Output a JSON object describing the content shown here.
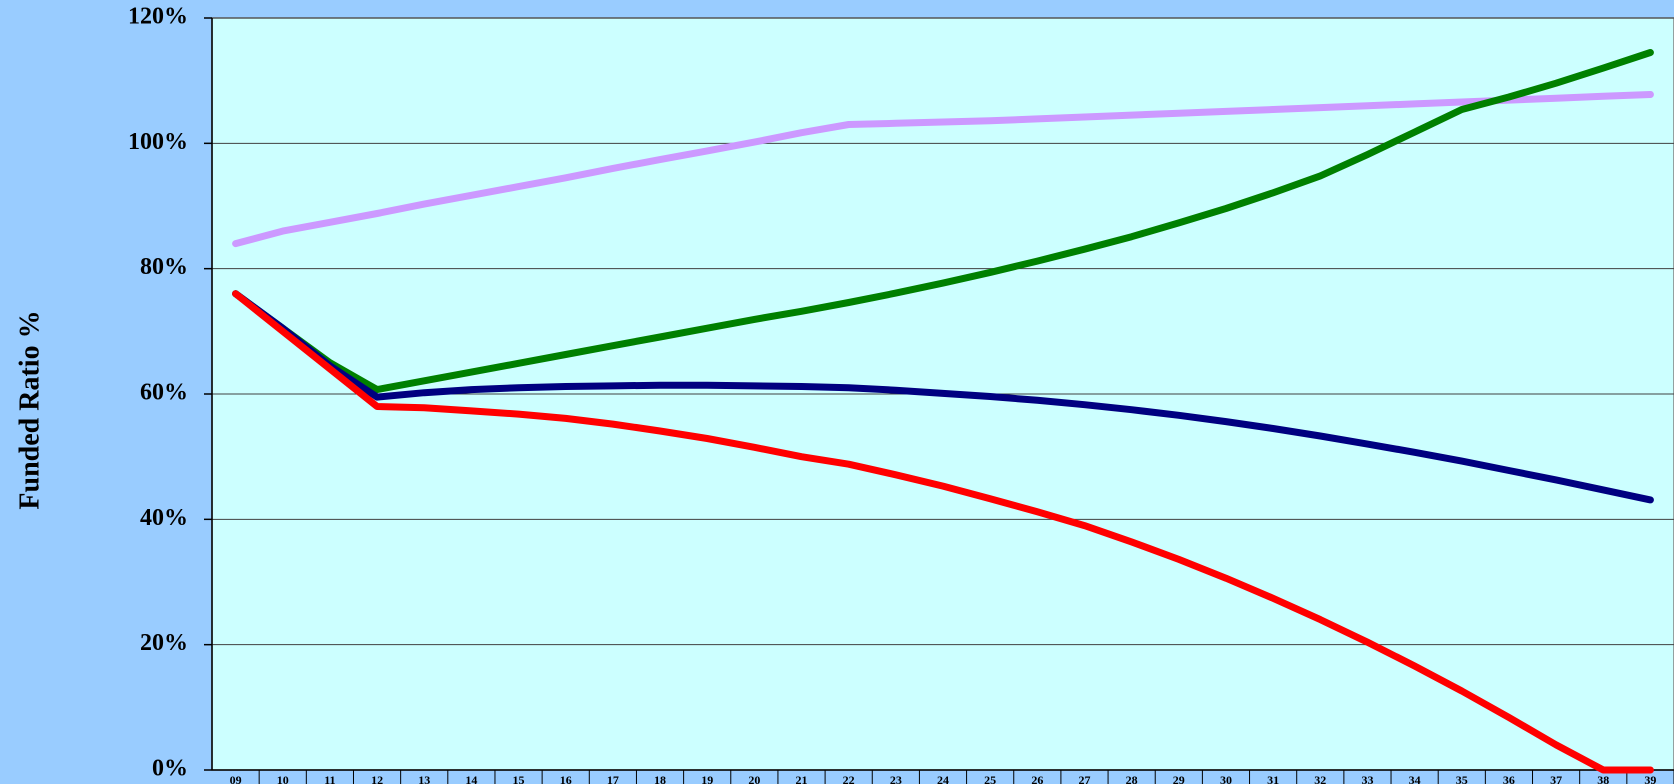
{
  "chart_data": {
    "type": "line",
    "y_label": "Funded Ratio %",
    "categories": [
      "09",
      "10",
      "11",
      "12",
      "13",
      "14",
      "15",
      "16",
      "17",
      "18",
      "19",
      "20",
      "21",
      "22",
      "23",
      "24",
      "25",
      "26",
      "27",
      "28",
      "29",
      "30",
      "31",
      "32",
      "33",
      "34",
      "35",
      "36",
      "37",
      "38",
      "39"
    ],
    "series": [
      {
        "color": "#cc99ff",
        "values": [
          84,
          86,
          87.4,
          88.8,
          90.3,
          91.7,
          93.1,
          94.5,
          96,
          97.4,
          98.8,
          100.2,
          101.7,
          103,
          103.2,
          103.4,
          103.6,
          103.9,
          104.2,
          104.5,
          104.8,
          105.1,
          105.4,
          105.7,
          106,
          106.3,
          106.6,
          106.9,
          107.2,
          107.5,
          107.8
        ]
      },
      {
        "color": "#008000",
        "values": [
          76,
          70.5,
          65,
          60.7,
          62.1,
          63.5,
          64.9,
          66.3,
          67.7,
          69.1,
          70.5,
          71.9,
          73.2,
          74.6,
          76.1,
          77.7,
          79.4,
          81.2,
          83.1,
          85.1,
          87.3,
          89.6,
          92.1,
          94.8,
          98.2,
          101.8,
          105.4,
          107.4,
          109.6,
          112,
          114.5
        ]
      },
      {
        "color": "#000080",
        "values": [
          76,
          70.5,
          64.5,
          59.5,
          60.2,
          60.7,
          61,
          61.2,
          61.3,
          61.4,
          61.4,
          61.3,
          61.2,
          61,
          60.6,
          60.1,
          59.6,
          59,
          58.3,
          57.5,
          56.6,
          55.6,
          54.5,
          53.3,
          52,
          50.7,
          49.3,
          47.8,
          46.3,
          44.7,
          43.1
        ]
      },
      {
        "color": "#ff0000",
        "values": [
          76,
          70,
          64,
          58,
          57.8,
          57.3,
          56.8,
          56.1,
          55.2,
          54.1,
          52.9,
          51.5,
          50,
          48.8,
          47.1,
          45.3,
          43.3,
          41.2,
          39,
          36.4,
          33.6,
          30.6,
          27.4,
          24,
          20.4,
          16.6,
          12.6,
          8.4,
          4,
          0,
          0
        ]
      }
    ],
    "ylim": [
      0,
      120
    ],
    "yticks": [
      {
        "value": 0,
        "label": "0%"
      },
      {
        "value": 20,
        "label": "20%"
      },
      {
        "value": 40,
        "label": "40%"
      },
      {
        "value": 60,
        "label": "60%"
      },
      {
        "value": 80,
        "label": "80%"
      },
      {
        "value": 100,
        "label": "100%"
      },
      {
        "value": 120,
        "label": "120%"
      }
    ],
    "grid": true,
    "background": "#99ccff",
    "plot_background": "#ccffff"
  }
}
